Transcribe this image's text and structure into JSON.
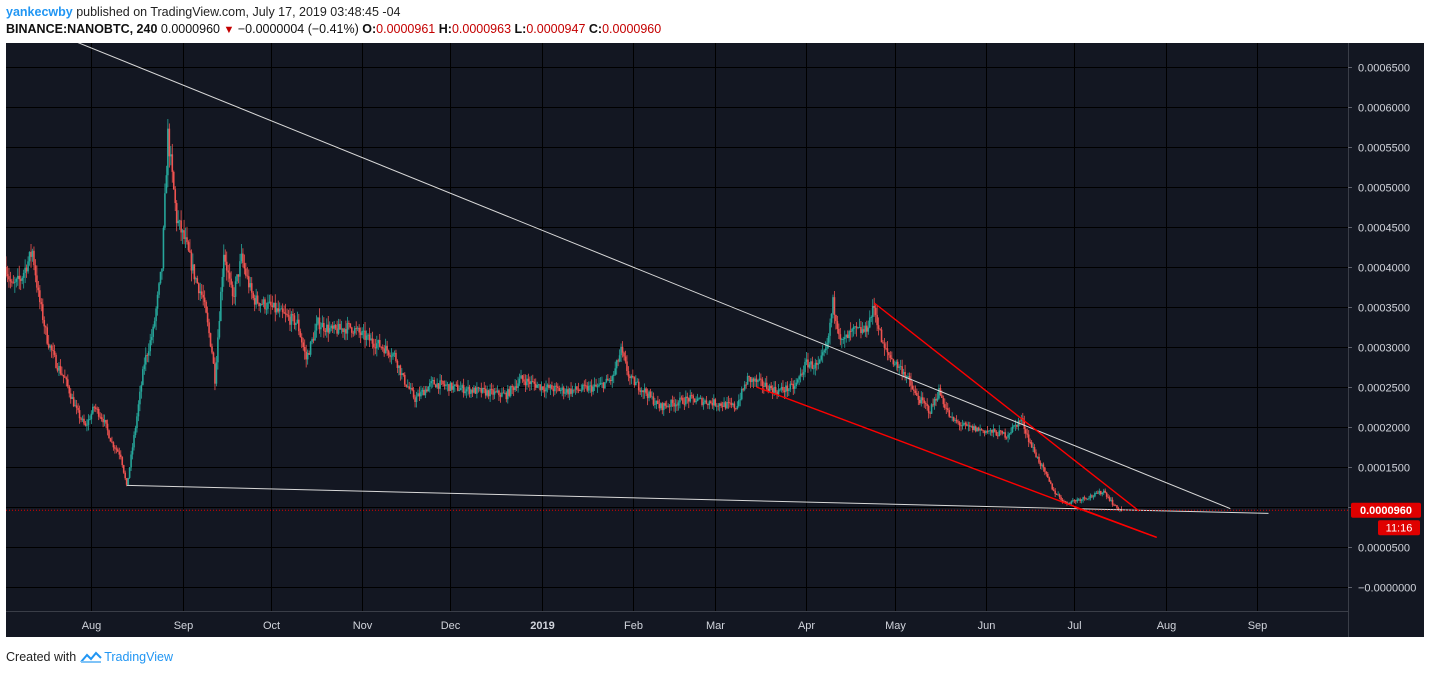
{
  "header": {
    "user": "yankecwby",
    "published_text": "published on TradingView.com, July 17, 2019 03:48:45 -04",
    "symbol": "BINANCE:NANOBTC, 240",
    "last_price": "0.0000960",
    "change_arrow": "▼",
    "change": "−0.0000004 (−0.41%)",
    "o_label": "O:",
    "o_value": "0.0000961",
    "h_label": "H:",
    "h_value": "0.0000963",
    "l_label": "L:",
    "l_value": "0.0000947",
    "c_label": "C:",
    "c_value": "0.0000960"
  },
  "footer": {
    "created_with": "Created with",
    "brand": "TradingView",
    "brand_icon": "tradingview-cloud-icon"
  },
  "price_tag": {
    "value": "0.0000960",
    "countdown": "11:16",
    "color": "#e00000"
  },
  "colors": {
    "background": "#131722",
    "grid": "#000000",
    "up": "#26a69a",
    "down": "#ef5350",
    "trendline_white": "#d8d8d8",
    "trendline_red": "#ff0000"
  },
  "chart_data": {
    "type": "candlestick",
    "title": "BINANCE:NANOBTC, 240",
    "xlabel": "",
    "ylabel": "",
    "x_tick_labels": [
      "Aug",
      "Sep",
      "Oct",
      "Nov",
      "Dec",
      "2019",
      "Feb",
      "Mar",
      "Apr",
      "May",
      "Jun",
      "Jul",
      "Aug",
      "Sep"
    ],
    "x_tick_bold": "2019",
    "y_tick_values": [
      -0.0,
      5e-05,
      0.0001,
      0.00015,
      0.0002,
      0.00025,
      0.0003,
      0.00035,
      0.0004,
      0.00045,
      0.0005,
      0.00055,
      0.0006,
      0.00065
    ],
    "y_tick_labels": [
      "−0.0000000",
      "0.0000500",
      "0.0001000",
      "0.0001500",
      "0.0002000",
      "0.0002500",
      "0.0003000",
      "0.0003500",
      "0.0004000",
      "0.0004500",
      "0.0005000",
      "0.0005500",
      "0.0006000",
      "0.0006500"
    ],
    "ylim": [
      -3e-05,
      0.00068
    ],
    "xlim": [
      "2018-07-03",
      "2019-10-02"
    ],
    "grid": true,
    "last_price_line": 9.6e-05,
    "price_path": [
      [
        "2018-07-03",
        0.0004
      ],
      [
        "2018-07-05",
        0.000375
      ],
      [
        "2018-07-08",
        0.000385
      ],
      [
        "2018-07-12",
        0.00042
      ],
      [
        "2018-07-14",
        0.000365
      ],
      [
        "2018-07-17",
        0.00031
      ],
      [
        "2018-07-20",
        0.00028
      ],
      [
        "2018-07-23",
        0.00026
      ],
      [
        "2018-07-27",
        0.00022
      ],
      [
        "2018-07-30",
        0.0002
      ],
      [
        "2018-08-02",
        0.000225
      ],
      [
        "2018-08-05",
        0.00021
      ],
      [
        "2018-08-08",
        0.00018
      ],
      [
        "2018-08-11",
        0.000165
      ],
      [
        "2018-08-13",
        0.000125
      ],
      [
        "2018-08-16",
        0.0002
      ],
      [
        "2018-08-19",
        0.00028
      ],
      [
        "2018-08-22",
        0.00032
      ],
      [
        "2018-08-25",
        0.0004
      ],
      [
        "2018-08-27",
        0.000565
      ],
      [
        "2018-08-30",
        0.00046
      ],
      [
        "2018-09-02",
        0.00043
      ],
      [
        "2018-09-05",
        0.00039
      ],
      [
        "2018-09-08",
        0.00036
      ],
      [
        "2018-09-11",
        0.000295
      ],
      [
        "2018-09-12",
        0.00026
      ],
      [
        "2018-09-15",
        0.00042
      ],
      [
        "2018-09-18",
        0.00036
      ],
      [
        "2018-09-21",
        0.00041
      ],
      [
        "2018-09-25",
        0.00036
      ],
      [
        "2018-10-01",
        0.00035
      ],
      [
        "2018-10-05",
        0.00034
      ],
      [
        "2018-10-10",
        0.00033
      ],
      [
        "2018-10-13",
        0.000285
      ],
      [
        "2018-10-17",
        0.00033
      ],
      [
        "2018-10-22",
        0.00032
      ],
      [
        "2018-10-28",
        0.000325
      ],
      [
        "2018-11-03",
        0.00031
      ],
      [
        "2018-11-08",
        0.0003
      ],
      [
        "2018-11-12",
        0.00029
      ],
      [
        "2018-11-15",
        0.00026
      ],
      [
        "2018-11-19",
        0.000235
      ],
      [
        "2018-11-25",
        0.000255
      ],
      [
        "2018-12-01",
        0.00025
      ],
      [
        "2018-12-10",
        0.000245
      ],
      [
        "2018-12-20",
        0.00024
      ],
      [
        "2018-12-25",
        0.00026
      ],
      [
        "2019-01-01",
        0.00025
      ],
      [
        "2019-01-10",
        0.000245
      ],
      [
        "2019-01-20",
        0.00025
      ],
      [
        "2019-01-25",
        0.00026
      ],
      [
        "2019-01-28",
        0.000295
      ],
      [
        "2019-01-31",
        0.00026
      ],
      [
        "2019-02-05",
        0.000245
      ],
      [
        "2019-02-10",
        0.000225
      ],
      [
        "2019-02-20",
        0.000235
      ],
      [
        "2019-03-01",
        0.00023
      ],
      [
        "2019-03-08",
        0.000225
      ],
      [
        "2019-03-12",
        0.00026
      ],
      [
        "2019-03-16",
        0.000255
      ],
      [
        "2019-03-22",
        0.000245
      ],
      [
        "2019-03-28",
        0.00025
      ],
      [
        "2019-04-01",
        0.00028
      ],
      [
        "2019-04-05",
        0.000275
      ],
      [
        "2019-04-08",
        0.0003
      ],
      [
        "2019-04-10",
        0.000355
      ],
      [
        "2019-04-13",
        0.000305
      ],
      [
        "2019-04-17",
        0.00032
      ],
      [
        "2019-04-21",
        0.00032
      ],
      [
        "2019-04-24",
        0.00035
      ],
      [
        "2019-04-27",
        0.0003
      ],
      [
        "2019-05-01",
        0.00028
      ],
      [
        "2019-05-04",
        0.00027
      ],
      [
        "2019-05-08",
        0.00024
      ],
      [
        "2019-05-13",
        0.00022
      ],
      [
        "2019-05-16",
        0.000245
      ],
      [
        "2019-05-20",
        0.00021
      ],
      [
        "2019-05-25",
        0.0002
      ],
      [
        "2019-06-01",
        0.000195
      ],
      [
        "2019-06-08",
        0.00019
      ],
      [
        "2019-06-13",
        0.00021
      ],
      [
        "2019-06-16",
        0.00018
      ],
      [
        "2019-06-20",
        0.00015
      ],
      [
        "2019-06-24",
        0.00012
      ],
      [
        "2019-06-28",
        0.000105
      ],
      [
        "2019-07-03",
        0.00011
      ],
      [
        "2019-07-08",
        0.000115
      ],
      [
        "2019-07-11",
        0.00012
      ],
      [
        "2019-07-15",
        0.0001
      ],
      [
        "2019-07-17",
        9.6e-05
      ]
    ],
    "trendlines": [
      {
        "color": "white",
        "points": [
          [
            "2018-07-13",
            0.000702
          ],
          [
            "2019-08-23",
            9.8e-05
          ]
        ]
      },
      {
        "color": "white",
        "points": [
          [
            "2018-08-13",
            0.000127
          ],
          [
            "2019-09-05",
            9.2e-05
          ]
        ]
      },
      {
        "color": "red",
        "points": [
          [
            "2019-04-24",
            0.000355
          ],
          [
            "2019-07-23",
            9.5e-05
          ]
        ]
      },
      {
        "color": "red",
        "points": [
          [
            "2019-03-15",
            0.00025
          ],
          [
            "2019-07-29",
            6.2e-05
          ]
        ]
      },
      {
        "color": "red",
        "points": [
          [
            "2019-07-01",
            0.0001
          ],
          [
            "2019-07-29",
            6.2e-05
          ]
        ]
      }
    ]
  }
}
